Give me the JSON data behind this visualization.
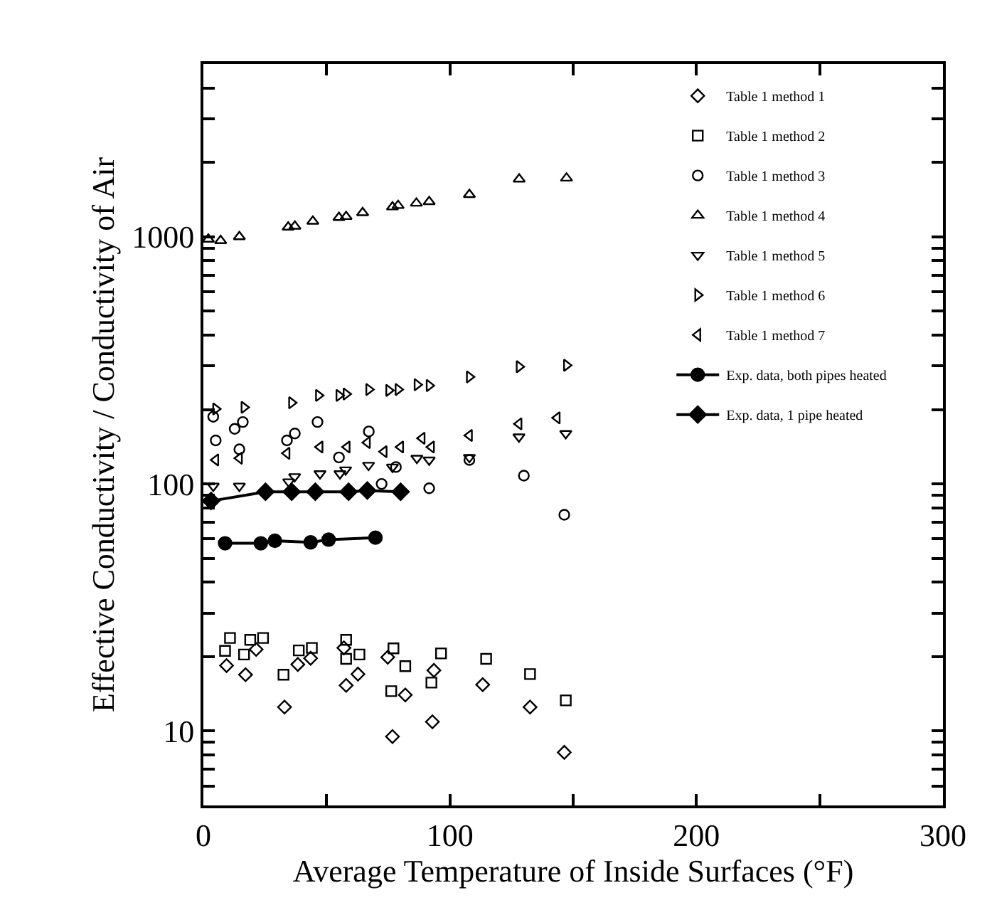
{
  "chart_data": {
    "type": "scatter",
    "xlabel": "Average Temperature of Inside Surfaces (°F)",
    "ylabel": "Effective Conductivity / Conductivity of Air",
    "log": "y",
    "legend": "top right",
    "xlim": [
      0,
      300
    ],
    "xticks": [
      0,
      {
        "value": 50,
        "label": null
      },
      100,
      {
        "value": 150,
        "label": null
      },
      200,
      {
        "value": 250,
        "label": null
      },
      300
    ],
    "ylim": [
      5,
      5000
    ],
    "yticks": [
      {
        "value": 6,
        "label": null
      },
      {
        "value": 7,
        "label": null
      },
      {
        "value": 8,
        "label": null
      },
      {
        "value": 9,
        "label": null
      },
      10,
      {
        "value": 20,
        "label": null
      },
      {
        "value": 30,
        "label": null
      },
      {
        "value": 40,
        "label": null
      },
      {
        "value": 50,
        "label": null
      },
      {
        "value": 60,
        "label": null
      },
      {
        "value": 70,
        "label": null
      },
      {
        "value": 80,
        "label": null
      },
      {
        "value": 90,
        "label": null
      },
      100,
      {
        "value": 200,
        "label": null
      },
      {
        "value": 300,
        "label": null
      },
      {
        "value": 400,
        "label": null
      },
      {
        "value": 500,
        "label": null
      },
      {
        "value": 600,
        "label": null
      },
      {
        "value": 700,
        "label": null
      },
      {
        "value": 800,
        "label": null
      },
      {
        "value": 900,
        "label": null
      },
      1000,
      {
        "value": 2000,
        "label": null
      },
      {
        "value": 3000,
        "label": null
      },
      {
        "value": 4000,
        "label": null
      }
    ],
    "series": [
      {
        "name": "Table 1 method 1",
        "marker": "diamond-open",
        "color": "#000000",
        "x": [
          9.4,
          17.1,
          21.4,
          32.9,
          38.3,
          43.5,
          57,
          57.9,
          62.7,
          74.8,
          76.7,
          81.9,
          93.5,
          92.9,
          113.3,
          132.5,
          146.4
        ],
        "values": [
          18.4,
          16.9,
          21.4,
          12.5,
          18.6,
          19.7,
          21.7,
          15.3,
          17.0,
          19.9,
          9.5,
          14.0,
          17.6,
          10.9,
          15.4,
          12.5,
          8.2
        ]
      },
      {
        "name": "Table 1 method 2",
        "marker": "square-open",
        "color": "#000000",
        "x": [
          8.8,
          10.8,
          16.5,
          19,
          24.2,
          32.5,
          38.7,
          44,
          57.9,
          57.9,
          63.3,
          77.1,
          76.2,
          81.9,
          92.5,
          96.4,
          114.7,
          132.5,
          147
        ],
        "values": [
          21.1,
          23.8,
          20.4,
          23.4,
          23.8,
          16.9,
          21.2,
          21.7,
          23.4,
          19.6,
          20.4,
          21.6,
          14.5,
          18.3,
          15.7,
          20.6,
          19.6,
          17.0,
          13.3
        ]
      },
      {
        "name": "Table 1 method 3",
        "marker": "circle-open",
        "color": "#000000",
        "x": [
          4,
          5,
          12.7,
          16,
          14.6,
          33.9,
          37.1,
          46.3,
          55,
          67.1,
          78.1,
          72.3,
          91.6,
          107.9,
          130,
          146.4
        ],
        "values": [
          187,
          150,
          167,
          178,
          138,
          150,
          160,
          178,
          128,
          163,
          117,
          100,
          96,
          125,
          108,
          75
        ]
      },
      {
        "name": "Table 1 method 4",
        "marker": "triangle-up-open",
        "color": "#000000",
        "x": [
          2,
          7,
          14.6,
          34.4,
          37.1,
          44.4,
          55,
          57.9,
          64.6,
          76.7,
          79,
          86.4,
          91.6,
          107.9,
          128.1,
          147.3
        ],
        "values": [
          977,
          964,
          1000,
          1094,
          1103,
          1155,
          1196,
          1207,
          1251,
          1320,
          1338,
          1367,
          1386,
          1482,
          1712,
          1727
        ]
      },
      {
        "name": "Table 1 method 5",
        "marker": "triangle-down-open",
        "color": "#000000",
        "x": [
          4,
          14.6,
          34.6,
          37,
          47.3,
          55.4,
          57.7,
          67,
          76.7,
          86.6,
          91.6,
          107.9,
          128,
          147
        ],
        "values": [
          98,
          98,
          102,
          107,
          110,
          110,
          114,
          119,
          117,
          127,
          125,
          128,
          155,
          160
        ]
      },
      {
        "name": "Table 1 method 6",
        "marker": "triangle-right-open",
        "color": "#000000",
        "x": [
          5,
          16.5,
          35.8,
          46.7,
          55,
          57.9,
          67.1,
          75.2,
          79,
          86.7,
          91.6,
          107.9,
          128.1,
          147.3
        ],
        "values": [
          201,
          204,
          213,
          228,
          228,
          231,
          241,
          239,
          241,
          252,
          250,
          271,
          298,
          302
        ]
      },
      {
        "name": "Table 1 method 7",
        "marker": "triangle-left-open",
        "color": "#000000",
        "x": [
          5,
          14.6,
          33.9,
          47.3,
          58.3,
          66.5,
          73.3,
          80,
          88.7,
          92.5,
          107.9,
          128,
          143.5
        ],
        "values": [
          125,
          127,
          133,
          141,
          141,
          147,
          135,
          141,
          153,
          141,
          157,
          175,
          185
        ]
      },
      {
        "name": "Exp. data, both pipes heated",
        "type": "line",
        "marker": "circle",
        "line_style": "solid",
        "color": "#000000",
        "x": [
          8.8,
          23.3,
          29,
          43.5,
          50.8,
          69.8
        ],
        "values": [
          57.5,
          57.5,
          58.9,
          58,
          59.5,
          60.6
        ]
      },
      {
        "name": "Exp. data, 1 pipe heated",
        "type": "line",
        "marker": "diamond",
        "line_style": "solid",
        "color": "#000000",
        "x": [
          3.1,
          25.2,
          35.8,
          45.4,
          58.9,
          66.5,
          80
        ],
        "values": [
          85.3,
          92.9,
          92.9,
          92.9,
          92.9,
          94,
          92.9
        ]
      }
    ]
  }
}
